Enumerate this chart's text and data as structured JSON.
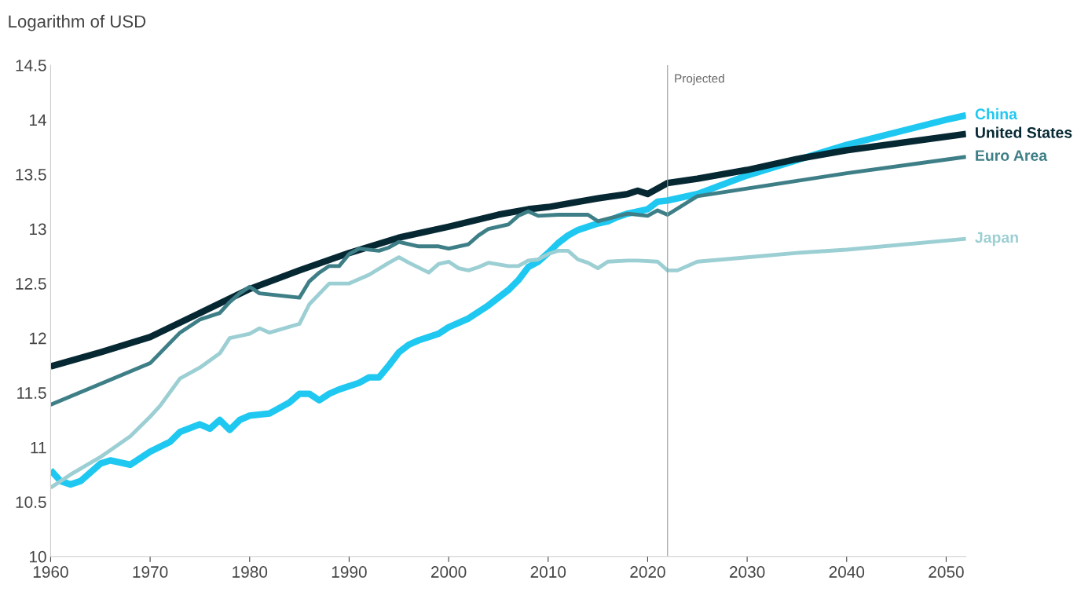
{
  "chart_data": {
    "type": "line",
    "ylabel": "Logarithm of USD",
    "xlim": [
      1960,
      2052
    ],
    "ylim": [
      10,
      14.5
    ],
    "xticks": [
      1960,
      1970,
      1980,
      1990,
      2000,
      2010,
      2020,
      2030,
      2040,
      2050
    ],
    "yticks": [
      10,
      10.5,
      11,
      11.5,
      12,
      12.5,
      13,
      13.5,
      14,
      14.5
    ],
    "grid": false,
    "legend": false,
    "marker": "none",
    "line_style": "solid",
    "ref_lines": [
      {
        "axis": "x",
        "value": 2022,
        "label": "Projected",
        "color": "#999999",
        "line_style": "solid"
      }
    ],
    "series": [
      {
        "name": "China",
        "color": "#1ec8f0",
        "x": [
          1960,
          1961,
          1962,
          1963,
          1965,
          1966,
          1968,
          1970,
          1972,
          1973,
          1975,
          1976,
          1977,
          1978,
          1979,
          1980,
          1982,
          1984,
          1985,
          1986,
          1987,
          1988,
          1989,
          1991,
          1992,
          1993,
          1994,
          1995,
          1996,
          1997,
          1998,
          1999,
          2000,
          2002,
          2004,
          2006,
          2007,
          2008,
          2009,
          2010,
          2011,
          2012,
          2013,
          2014,
          2015,
          2016,
          2017,
          2018,
          2019,
          2020,
          2021,
          2022,
          2025,
          2030,
          2035,
          2040,
          2050,
          2052
        ],
        "values": [
          10.79,
          10.69,
          10.66,
          10.69,
          10.85,
          10.88,
          10.84,
          10.96,
          11.05,
          11.14,
          11.21,
          11.17,
          11.25,
          11.16,
          11.25,
          11.29,
          11.31,
          11.41,
          11.49,
          11.49,
          11.43,
          11.49,
          11.53,
          11.59,
          11.64,
          11.64,
          11.75,
          11.87,
          11.94,
          11.98,
          12.01,
          12.04,
          12.1,
          12.18,
          12.3,
          12.44,
          12.53,
          12.65,
          12.7,
          12.78,
          12.87,
          12.94,
          12.99,
          13.02,
          13.05,
          13.07,
          13.11,
          13.14,
          13.16,
          13.18,
          13.25,
          13.26,
          13.32,
          13.49,
          13.63,
          13.77,
          14.0,
          14.04
        ]
      },
      {
        "name": "United States",
        "color": "#062833",
        "x": [
          1960,
          1965,
          1970,
          1975,
          1980,
          1985,
          1990,
          1995,
          2000,
          2005,
          2008,
          2010,
          2015,
          2018,
          2019,
          2020,
          2022,
          2025,
          2030,
          2035,
          2040,
          2052
        ],
        "values": [
          11.74,
          11.87,
          12.01,
          12.23,
          12.45,
          12.62,
          12.78,
          12.92,
          13.02,
          13.13,
          13.18,
          13.2,
          13.28,
          13.32,
          13.35,
          13.32,
          13.42,
          13.46,
          13.54,
          13.64,
          13.72,
          13.87
        ]
      },
      {
        "name": "Euro Area",
        "color": "#3e7f87",
        "x": [
          1960,
          1965,
          1970,
          1973,
          1975,
          1977,
          1978,
          1979,
          1980,
          1981,
          1985,
          1986,
          1987,
          1988,
          1989,
          1990,
          1991,
          1993,
          1994,
          1995,
          1997,
          1999,
          2000,
          2002,
          2003,
          2004,
          2006,
          2007,
          2008,
          2009,
          2011,
          2014,
          2015,
          2018,
          2020,
          2021,
          2022,
          2025,
          2030,
          2035,
          2040,
          2052
        ],
        "values": [
          11.39,
          11.58,
          11.77,
          12.05,
          12.17,
          12.23,
          12.33,
          12.41,
          12.47,
          12.41,
          12.37,
          12.52,
          12.6,
          12.66,
          12.66,
          12.77,
          12.82,
          12.8,
          12.83,
          12.88,
          12.84,
          12.84,
          12.82,
          12.86,
          12.94,
          13.0,
          13.04,
          13.12,
          13.16,
          13.12,
          13.13,
          13.13,
          13.07,
          13.14,
          13.12,
          13.17,
          13.13,
          13.3,
          13.37,
          13.44,
          13.51,
          13.66
        ]
      },
      {
        "name": "Japan",
        "color": "#9ccfd3",
        "x": [
          1960,
          1962,
          1965,
          1968,
          1970,
          1971,
          1973,
          1975,
          1977,
          1978,
          1980,
          1981,
          1982,
          1985,
          1986,
          1988,
          1990,
          1992,
          1994,
          1995,
          1996,
          1998,
          1999,
          2000,
          2001,
          2002,
          2003,
          2004,
          2006,
          2007,
          2008,
          2009,
          2010,
          2011,
          2012,
          2013,
          2014,
          2015,
          2016,
          2018,
          2019,
          2021,
          2022,
          2023,
          2025,
          2030,
          2035,
          2040,
          2052
        ],
        "values": [
          10.63,
          10.75,
          10.91,
          11.1,
          11.28,
          11.38,
          11.63,
          11.73,
          11.86,
          12.0,
          12.04,
          12.09,
          12.05,
          12.13,
          12.31,
          12.5,
          12.5,
          12.58,
          12.69,
          12.74,
          12.69,
          12.6,
          12.68,
          12.7,
          12.64,
          12.62,
          12.65,
          12.69,
          12.66,
          12.66,
          12.71,
          12.72,
          12.77,
          12.8,
          12.8,
          12.72,
          12.69,
          12.64,
          12.7,
          12.71,
          12.71,
          12.7,
          12.62,
          12.62,
          12.7,
          12.74,
          12.78,
          12.81,
          12.91
        ]
      }
    ]
  }
}
